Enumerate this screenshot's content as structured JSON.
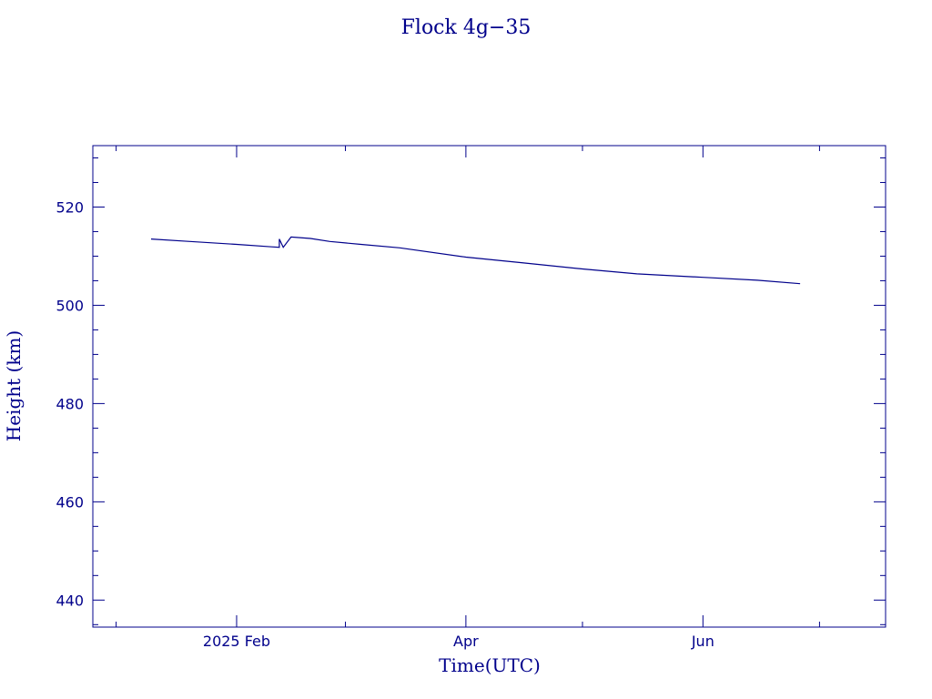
{
  "chart_data": {
    "type": "line",
    "title": "Flock 4g−35",
    "xlabel": "Time(UTC)",
    "ylabel": "Height (km)",
    "color": "#00008b",
    "xlim": [
      "2024-12-26",
      "2025-07-18"
    ],
    "ylim": [
      434.5,
      532.5
    ],
    "x_tick_labels": [
      {
        "date": "2025-02-01",
        "label": "2025 Feb"
      },
      {
        "date": "2025-04-01",
        "label": "Apr"
      },
      {
        "date": "2025-06-01",
        "label": "Jun"
      }
    ],
    "x_minor_ticks": [
      "2025-01-01",
      "2025-03-01",
      "2025-05-01",
      "2025-07-01"
    ],
    "y_major_ticks": [
      440,
      460,
      480,
      500,
      520
    ],
    "y_minor_step": 5,
    "grid": false,
    "series": [
      {
        "x": [
          "2025-01-10",
          "2025-01-20",
          "2025-02-01",
          "2025-02-10",
          "2025-02-12",
          "2025-02-12",
          "2025-02-13",
          "2025-02-15",
          "2025-02-20",
          "2025-02-25",
          "2025-03-05",
          "2025-03-15",
          "2025-04-01",
          "2025-04-15",
          "2025-05-01",
          "2025-05-15",
          "2025-06-01",
          "2025-06-15",
          "2025-06-26"
        ],
        "y": [
          513.5,
          513.0,
          512.4,
          511.9,
          511.8,
          513.5,
          511.8,
          513.9,
          513.6,
          513.0,
          512.4,
          511.7,
          509.8,
          508.7,
          507.4,
          506.4,
          505.7,
          505.1,
          504.4
        ]
      }
    ]
  }
}
